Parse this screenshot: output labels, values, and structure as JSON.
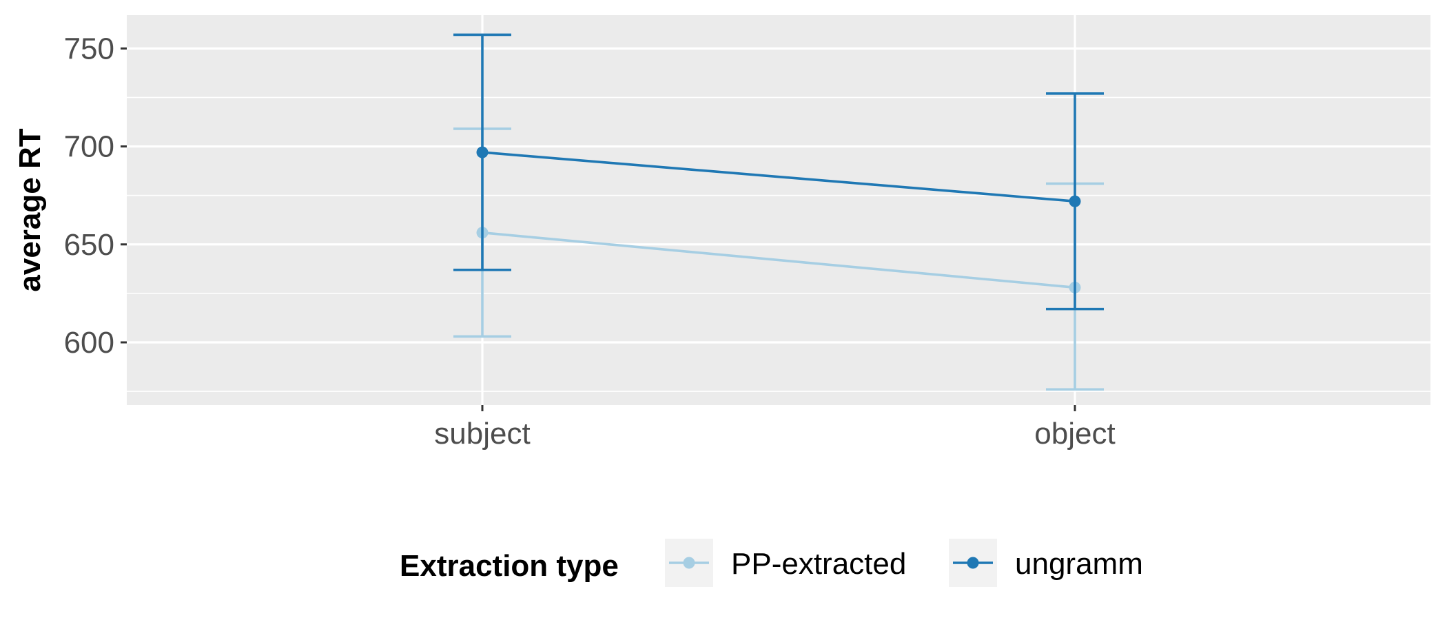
{
  "chart_data": {
    "type": "line",
    "categories": [
      "subject",
      "object"
    ],
    "series": [
      {
        "name": "PP-extracted",
        "color": "#a6cee3",
        "values": [
          656,
          628
        ],
        "lower": [
          603,
          576
        ],
        "upper": [
          709,
          681
        ]
      },
      {
        "name": "ungramm",
        "color": "#1f78b4",
        "values": [
          697,
          672
        ],
        "lower": [
          637,
          617
        ],
        "upper": [
          757,
          727
        ]
      }
    ],
    "ylabel": "average RT",
    "ylim": [
      568,
      767
    ],
    "yticks": [
      600,
      650,
      700,
      750
    ],
    "error_bars": true,
    "grid": true,
    "legend": {
      "title": "Extraction type",
      "position": "bottom"
    }
  }
}
